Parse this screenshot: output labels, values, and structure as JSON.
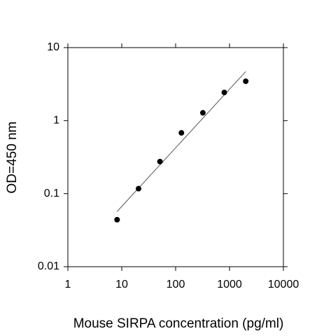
{
  "chart_data": {
    "type": "scatter",
    "x_label": "Mouse SIRPA concentration (pg/ml)",
    "y_label": "OD=450 nm",
    "x": [
      8.192,
      20.48,
      51.2,
      128,
      320,
      800,
      2000
    ],
    "values": [
      0.044,
      0.117,
      0.275,
      0.68,
      1.28,
      2.43,
      3.46
    ],
    "color": "#000000",
    "fit": {
      "x": [
        8.192,
        2000
      ],
      "values": [
        0.057,
        4.7
      ],
      "color": "#555555"
    },
    "xscale": "log",
    "yscale": "log",
    "xlim": [
      1,
      10000
    ],
    "ylim": [
      0.01,
      10
    ],
    "xticks": [
      1,
      10,
      100,
      1000,
      10000
    ],
    "yticks": [
      0.01,
      0.1,
      1,
      10
    ]
  }
}
